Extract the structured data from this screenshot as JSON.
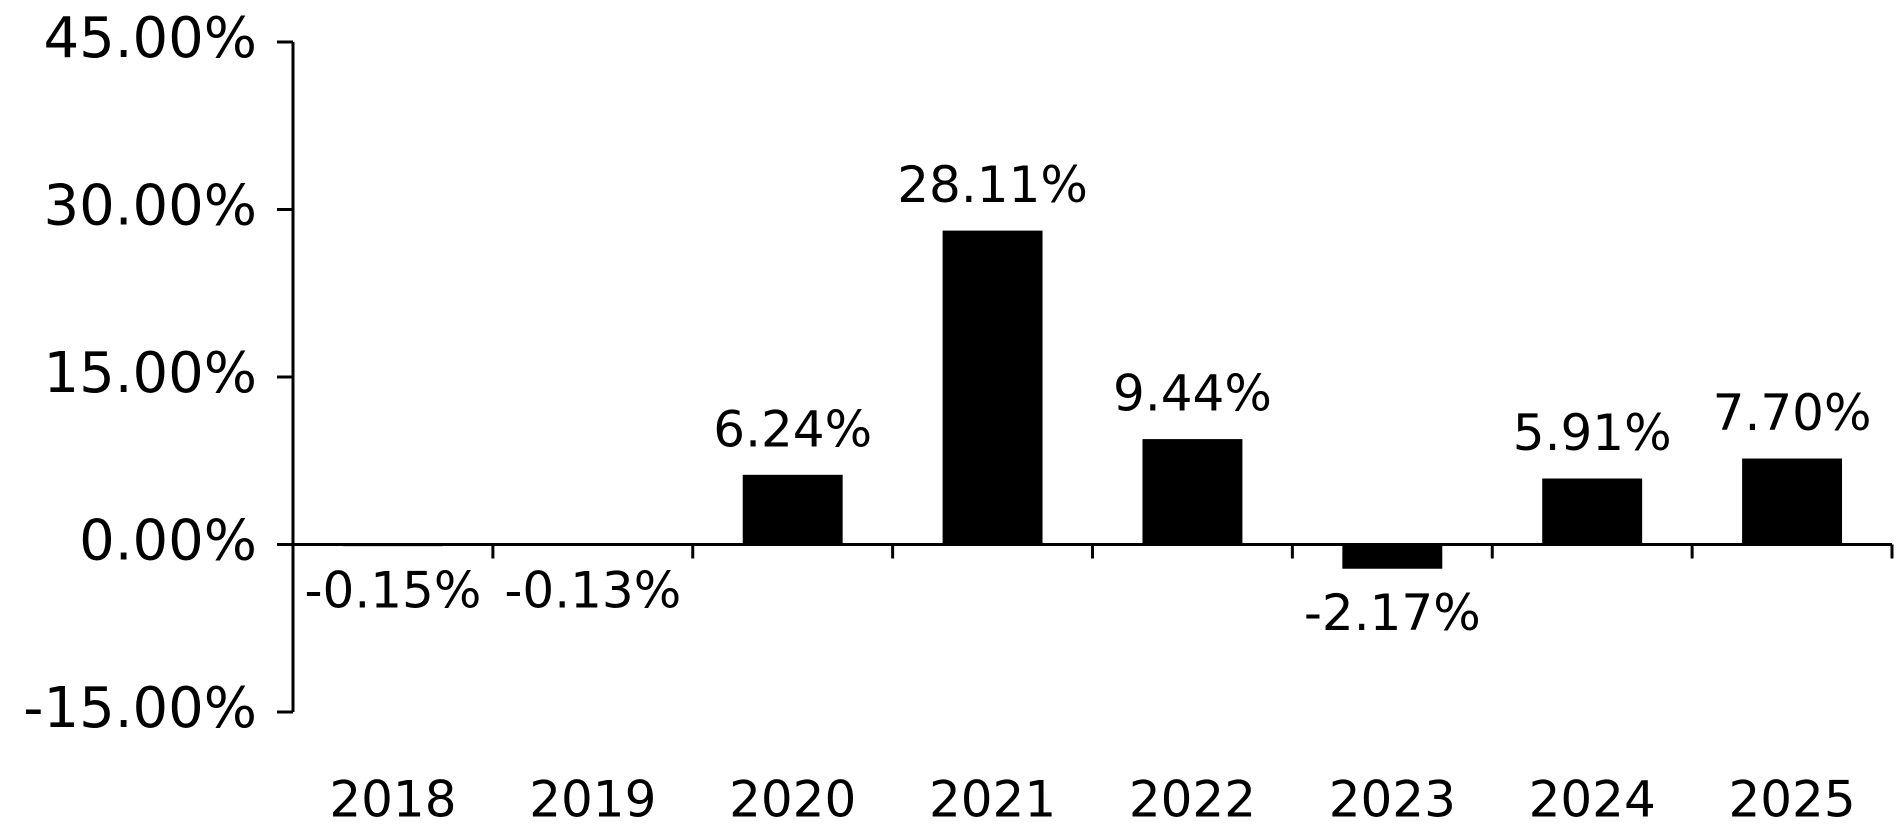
{
  "chart_data": {
    "type": "bar",
    "categories": [
      "2018",
      "2019",
      "2020",
      "2021",
      "2022",
      "2023",
      "2024",
      "2025"
    ],
    "values": [
      -0.15,
      -0.13,
      6.24,
      28.11,
      9.44,
      -2.17,
      5.91,
      7.7
    ],
    "value_labels": [
      "-0.15%",
      "-0.13%",
      "6.24%",
      "28.11%",
      "9.44%",
      "-2.17%",
      "5.91%",
      "7.70%"
    ],
    "color": "#000000",
    "ylim": [
      -15,
      45
    ],
    "yticks": [
      {
        "value": -15,
        "label": "-15.00%"
      },
      {
        "value": 0,
        "label": "0.00%"
      },
      {
        "value": 15,
        "label": "15.00%"
      },
      {
        "value": 30,
        "label": "30.00%"
      },
      {
        "value": 45,
        "label": "45.00%"
      }
    ],
    "grid": false
  }
}
